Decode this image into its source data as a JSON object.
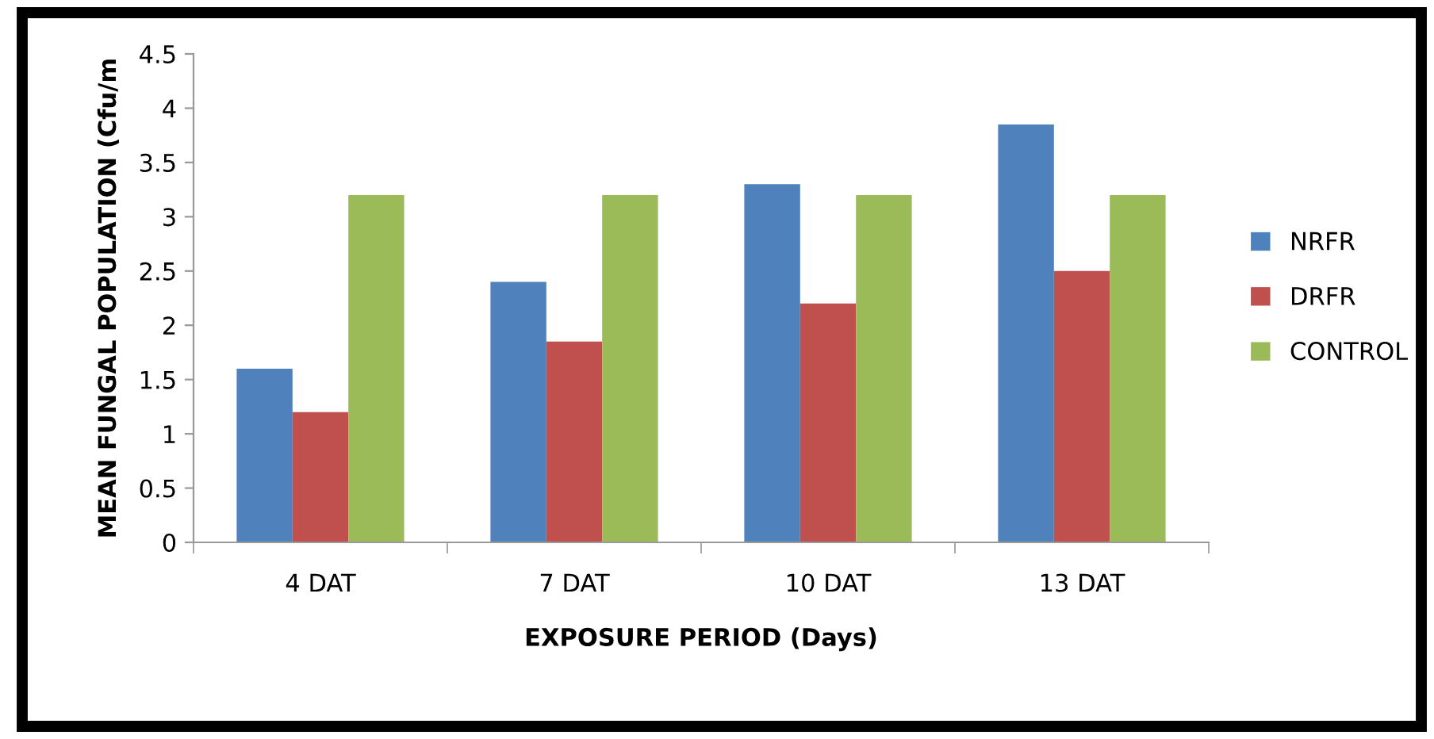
{
  "chart_data": {
    "type": "bar",
    "xlabel": "EXPOSURE PERIOD (Days)",
    "ylabel": "MEAN FUNGAL POPULATION (Cfu/m",
    "categories": [
      "4 DAT",
      "7 DAT",
      "10 DAT",
      "13 DAT"
    ],
    "series": [
      {
        "name": "NRFR",
        "color": "#4f81bd",
        "values": [
          1.6,
          2.4,
          3.3,
          3.85
        ]
      },
      {
        "name": "DRFR",
        "color": "#c0504d",
        "values": [
          1.2,
          1.85,
          2.2,
          2.5
        ]
      },
      {
        "name": "CONTROL",
        "color": "#9bbb59",
        "values": [
          3.2,
          3.2,
          3.2,
          3.2
        ]
      }
    ],
    "ylim": [
      0,
      4.5
    ],
    "yticks": [
      0,
      0.5,
      1,
      1.5,
      2,
      2.5,
      3,
      3.5,
      4,
      4.5
    ],
    "grid": false,
    "legend": "right"
  }
}
